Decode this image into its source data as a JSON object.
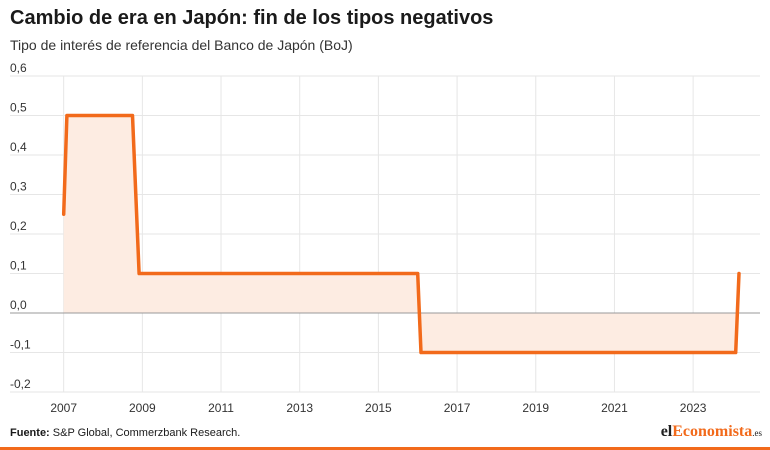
{
  "header": {
    "title": "Cambio de era en Japón: fin de los tipos negativos",
    "subtitle": "Tipo de interés de referencia del Banco de Japón (BoJ)"
  },
  "footer": {
    "source_label": "Fuente:",
    "source_text": " S&P Global, Commerzbank Research.",
    "logo": {
      "part1": "el",
      "part2": "Economista",
      "part3": ".es"
    }
  },
  "colors": {
    "line": "#f26a1b",
    "fill": "#fdece2",
    "grid": "#e6e6e6",
    "zero_line": "#999999"
  },
  "chart_data": {
    "type": "line",
    "title": "",
    "xlabel": "",
    "ylabel": "",
    "ylim": [
      -0.2,
      0.6
    ],
    "xlim": [
      2006.5,
      2024.7
    ],
    "x_ticks": [
      2007,
      2009,
      2011,
      2013,
      2015,
      2017,
      2019,
      2021,
      2023
    ],
    "y_ticks": [
      0.6,
      0.5,
      0.4,
      0.3,
      0.2,
      0.1,
      0.0,
      -0.1,
      -0.2
    ],
    "y_tick_labels": [
      "0,6",
      "0,5",
      "0,4",
      "0,3",
      "0,2",
      "0,1",
      "0,0",
      "-0,1",
      "-0,2"
    ],
    "grid": true,
    "area_fill_to_zero": true,
    "series": [
      {
        "points": [
          [
            "2007-01",
            0.25
          ],
          [
            "2007-02",
            0.5
          ],
          [
            "2008-10",
            0.5
          ],
          [
            "2008-11",
            0.3
          ],
          [
            "2008-12",
            0.1
          ],
          [
            "2016-01",
            0.1
          ],
          [
            "2016-02",
            -0.1
          ],
          [
            "2024-02",
            -0.1
          ],
          [
            "2024-03",
            0.1
          ]
        ]
      }
    ]
  }
}
